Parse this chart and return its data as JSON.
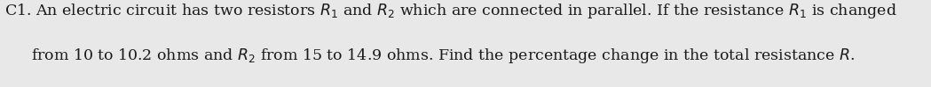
{
  "label": "C1.",
  "line1": " An electric circuit has two resistors $R_1$ and $R_2$ which are connected in parallel. If the resistance $R_1$ is changed",
  "line2": "from 10 to 10.2 ohms and $R_2$ from 15 to 14.9 ohms. Find the percentage change in the total resistance $R$.",
  "font_size": 12.5,
  "text_color": "#1a1a1a",
  "background_color": "#e8e8e8",
  "fig_width": 10.49,
  "fig_height": 0.99,
  "dpi": 100
}
